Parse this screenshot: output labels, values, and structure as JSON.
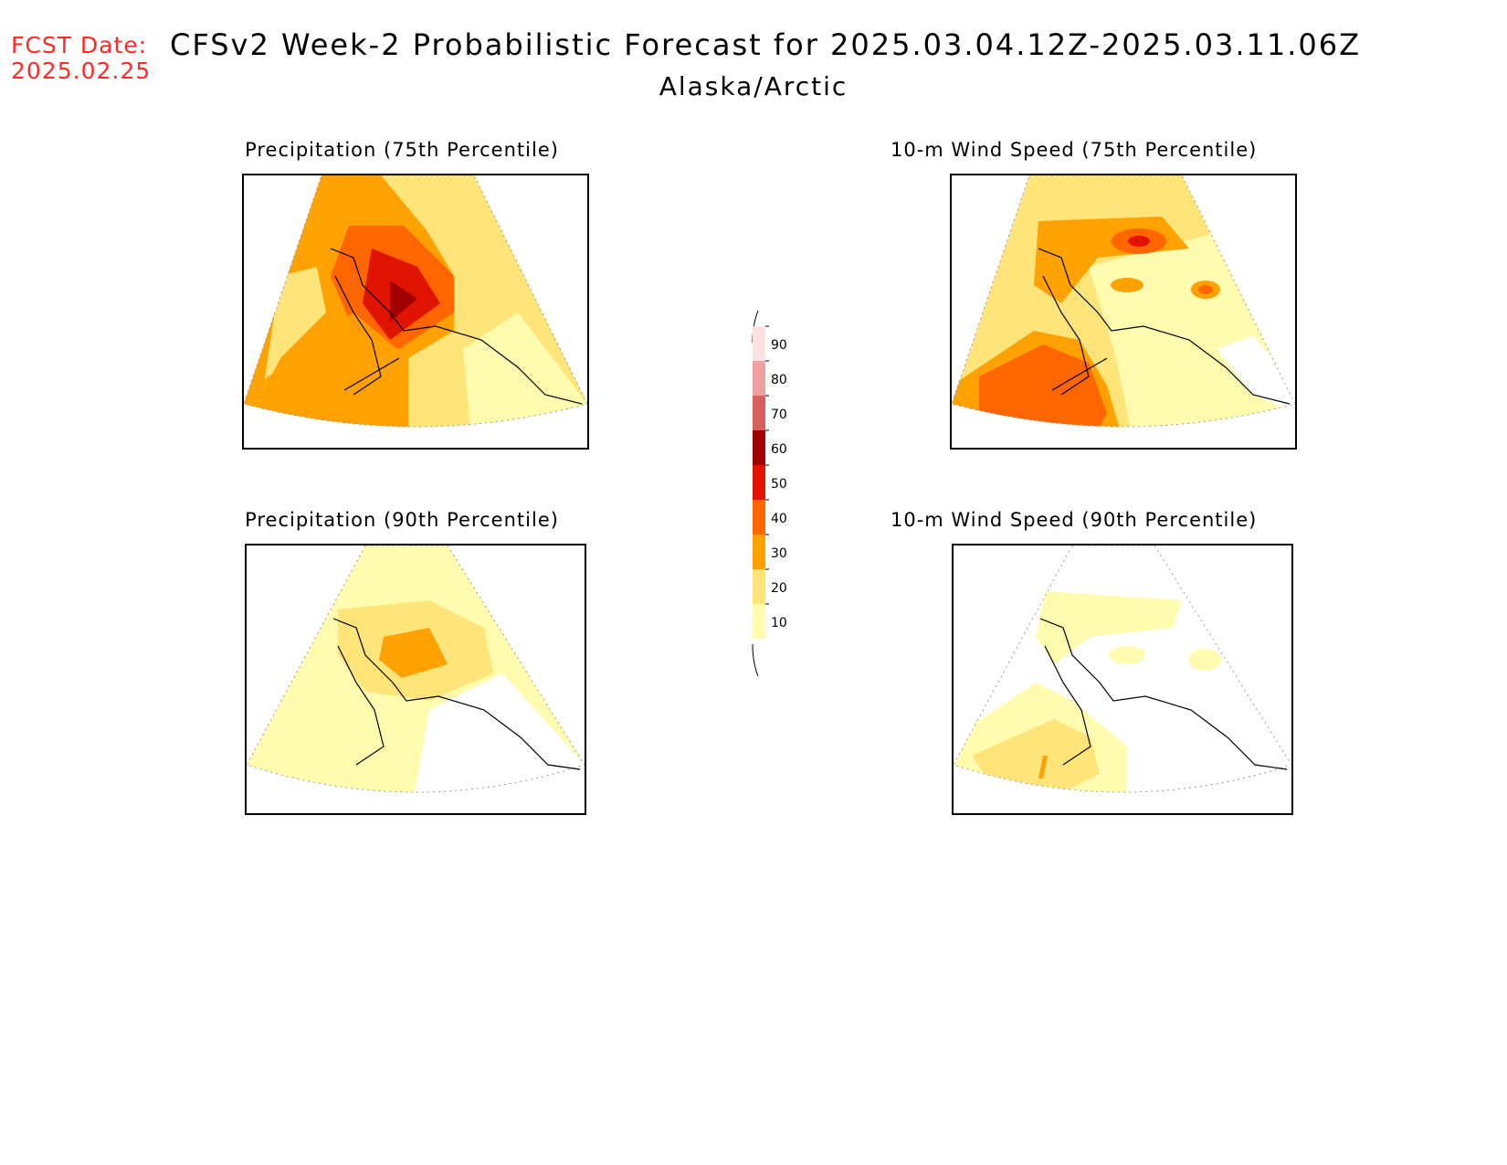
{
  "header": {
    "fcst_label": "FCST Date:",
    "fcst_date": "2025.02.25",
    "title": "CFSv2 Week-2 Probabilistic Forecast for 2025.03.04.12Z-2025.03.11.06Z",
    "subtitle": "Alaska/Arctic"
  },
  "panels": [
    {
      "title": "Precipitation (75th Percentile)"
    },
    {
      "title": "10-m Wind Speed (75th Percentile)"
    },
    {
      "title": "Precipitation (90th Percentile)"
    },
    {
      "title": "10-m Wind Speed (90th Percentile)"
    }
  ],
  "legend": {
    "levels": [
      "10",
      "20",
      "30",
      "40",
      "50",
      "60",
      "70",
      "80",
      "90"
    ],
    "colors": {
      "10": "#fffcb0",
      "20": "#ffe47a",
      "30": "#ffa100",
      "40": "#ff6600",
      "50": "#e01400",
      "60": "#a00000",
      "70": "#d95f5f",
      "80": "#f0a0a0",
      "90": "#fde0e0"
    }
  }
}
